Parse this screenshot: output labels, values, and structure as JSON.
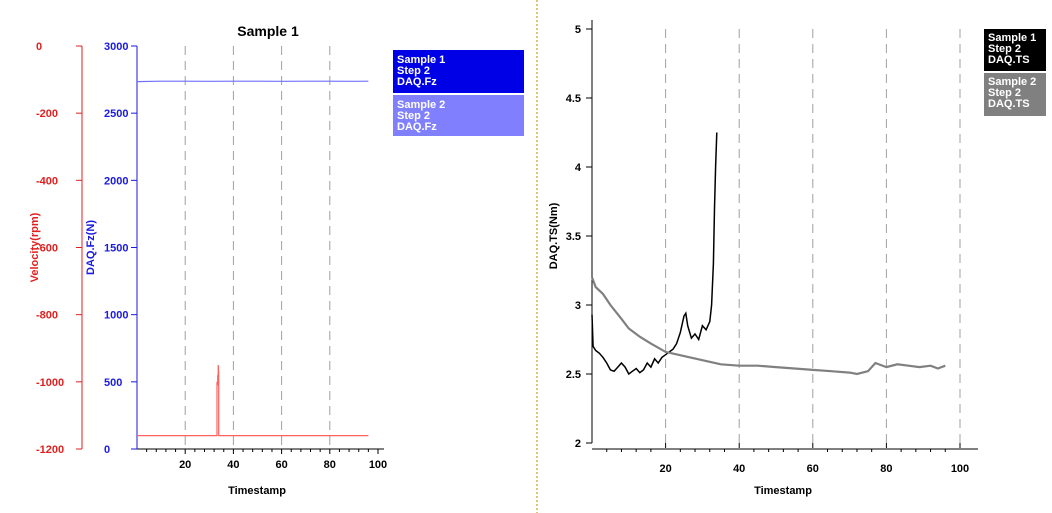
{
  "chart_data": [
    {
      "type": "line",
      "title": "Sample 1",
      "xlabel": "Timestamp",
      "xlim": [
        0,
        100
      ],
      "x_ticks": [
        "20",
        "40",
        "60",
        "80",
        "100"
      ],
      "y_left": {
        "label": "Velocity(rpm)",
        "color": "#e02020",
        "lim": [
          -1200,
          0
        ],
        "ticks": [
          "0",
          "-200",
          "-400",
          "-600",
          "-800",
          "-1000",
          "-1200"
        ]
      },
      "y_right": {
        "label": "DAQ.Fz(N)",
        "color": "#1a1ae0",
        "lim": [
          0,
          3000
        ],
        "ticks": [
          "3000",
          "2500",
          "2000",
          "1500",
          "1000",
          "500",
          "0"
        ]
      },
      "legend": [
        {
          "lines": [
            "Sample 1",
            "Step 2",
            "DAQ.Fz"
          ],
          "color": "#0000e6"
        },
        {
          "lines": [
            "Sample 2",
            "Step 2",
            "DAQ.Fz"
          ],
          "color": "#8080ff"
        }
      ],
      "series": [
        {
          "axis": "right",
          "color": "#7070ff",
          "x": [
            0,
            10,
            20,
            30,
            40,
            50,
            60,
            70,
            80,
            90,
            96
          ],
          "y": [
            2735,
            2738,
            2738,
            2737,
            2738,
            2738,
            2737,
            2738,
            2738,
            2737,
            2738
          ]
        },
        {
          "axis": "left",
          "color": "#ff6060",
          "x": [
            0,
            33.2,
            33.2,
            33.5,
            33.5,
            33.7,
            33.7,
            33.9,
            33.9,
            96
          ],
          "y": [
            -1160,
            -1160,
            -1000,
            -1010,
            -980,
            -1000,
            -950,
            -975,
            -1160,
            -1160
          ]
        }
      ]
    },
    {
      "type": "line",
      "title": "",
      "xlabel": "Timestamp",
      "ylabel": "DAQ.TS(Nm)",
      "xlim": [
        0,
        100
      ],
      "ylim": [
        2,
        5
      ],
      "x_ticks": [
        "20",
        "40",
        "60",
        "80",
        "100"
      ],
      "y_ticks": [
        "5",
        "4.5",
        "4",
        "3.5",
        "3",
        "2.5",
        "2"
      ],
      "legend": [
        {
          "lines": [
            "Sample 1",
            "Step 2",
            "DAQ.TS"
          ],
          "color": "#000000"
        },
        {
          "lines": [
            "Sample 2",
            "Step 2",
            "DAQ.TS"
          ],
          "color": "#808080"
        }
      ],
      "series": [
        {
          "color": "#000000",
          "x": [
            0,
            0.3,
            1,
            2,
            3,
            4,
            5,
            6,
            7,
            8,
            9,
            10,
            11,
            12,
            13,
            14,
            15,
            16,
            17,
            18,
            19,
            20,
            21,
            22,
            23,
            24,
            25,
            25.5,
            26,
            27,
            28,
            29,
            30,
            31,
            32,
            32.5,
            33,
            33.3,
            33.6,
            33.9
          ],
          "y": [
            2.93,
            2.7,
            2.67,
            2.65,
            2.62,
            2.58,
            2.53,
            2.52,
            2.55,
            2.58,
            2.55,
            2.5,
            2.52,
            2.54,
            2.51,
            2.53,
            2.58,
            2.55,
            2.61,
            2.58,
            2.62,
            2.64,
            2.66,
            2.68,
            2.72,
            2.8,
            2.92,
            2.94,
            2.85,
            2.76,
            2.79,
            2.75,
            2.85,
            2.82,
            2.88,
            3.0,
            3.3,
            3.7,
            4.0,
            4.25
          ]
        },
        {
          "color": "#808080",
          "x": [
            0,
            1,
            3,
            5,
            8,
            10,
            13,
            16,
            20,
            25,
            30,
            35,
            40,
            45,
            50,
            55,
            60,
            65,
            70,
            72,
            75,
            77,
            80,
            83,
            86,
            89,
            92,
            94,
            96
          ],
          "y": [
            3.2,
            3.13,
            3.08,
            3.0,
            2.9,
            2.83,
            2.77,
            2.72,
            2.66,
            2.63,
            2.6,
            2.57,
            2.56,
            2.56,
            2.55,
            2.54,
            2.53,
            2.52,
            2.51,
            2.5,
            2.52,
            2.58,
            2.55,
            2.57,
            2.56,
            2.55,
            2.56,
            2.54,
            2.56
          ]
        }
      ]
    }
  ]
}
